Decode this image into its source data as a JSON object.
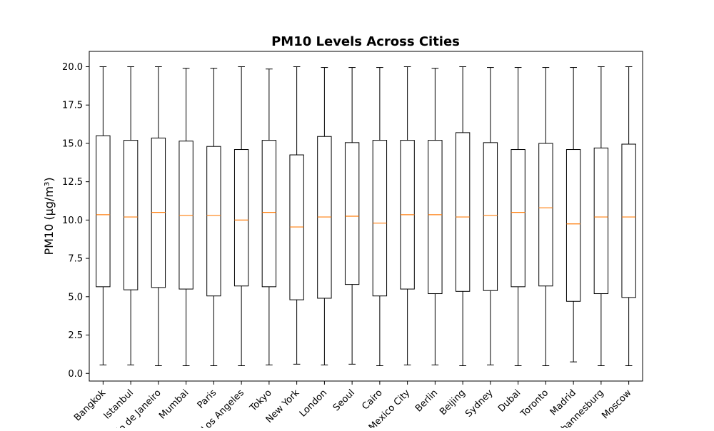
{
  "chart_data": {
    "type": "box",
    "title": "PM10 Levels Across Cities",
    "xlabel": "",
    "ylabel": "PM10 (µg/m³)",
    "ylim": [
      -0.5,
      21.0
    ],
    "yticks": [
      "0.0",
      "2.5",
      "5.0",
      "7.5",
      "10.0",
      "12.5",
      "15.0",
      "17.5",
      "20.0"
    ],
    "grid": false,
    "colors": {
      "box": "#000000",
      "median": "#ff7f0e",
      "background": "#ffffff"
    },
    "categories": [
      "Bangkok",
      "Istanbul",
      "Rio de Janeiro",
      "Mumbai",
      "Paris",
      "Los Angeles",
      "Tokyo",
      "New York",
      "London",
      "Seoul",
      "Cairo",
      "Mexico City",
      "Berlin",
      "Beijing",
      "Sydney",
      "Dubai",
      "Toronto",
      "Madrid",
      "Johannesburg",
      "Moscow"
    ],
    "boxes": [
      {
        "whislo": 0.55,
        "q1": 5.65,
        "med": 10.35,
        "q3": 15.5,
        "whishi": 20.0
      },
      {
        "whislo": 0.55,
        "q1": 5.45,
        "med": 10.2,
        "q3": 15.2,
        "whishi": 20.0
      },
      {
        "whislo": 0.5,
        "q1": 5.6,
        "med": 10.5,
        "q3": 15.35,
        "whishi": 20.0
      },
      {
        "whislo": 0.5,
        "q1": 5.5,
        "med": 10.3,
        "q3": 15.15,
        "whishi": 19.9
      },
      {
        "whislo": 0.5,
        "q1": 5.05,
        "med": 10.3,
        "q3": 14.8,
        "whishi": 19.9
      },
      {
        "whislo": 0.5,
        "q1": 5.7,
        "med": 10.0,
        "q3": 14.6,
        "whishi": 20.0
      },
      {
        "whislo": 0.55,
        "q1": 5.65,
        "med": 10.5,
        "q3": 15.2,
        "whishi": 19.85
      },
      {
        "whislo": 0.6,
        "q1": 4.8,
        "med": 9.55,
        "q3": 14.25,
        "whishi": 20.0
      },
      {
        "whislo": 0.55,
        "q1": 4.9,
        "med": 10.2,
        "q3": 15.45,
        "whishi": 19.95
      },
      {
        "whislo": 0.6,
        "q1": 5.8,
        "med": 10.25,
        "q3": 15.05,
        "whishi": 19.95
      },
      {
        "whislo": 0.5,
        "q1": 5.05,
        "med": 9.8,
        "q3": 15.2,
        "whishi": 19.95
      },
      {
        "whislo": 0.55,
        "q1": 5.5,
        "med": 10.35,
        "q3": 15.2,
        "whishi": 20.0
      },
      {
        "whislo": 0.55,
        "q1": 5.2,
        "med": 10.35,
        "q3": 15.2,
        "whishi": 19.9
      },
      {
        "whislo": 0.5,
        "q1": 5.35,
        "med": 10.2,
        "q3": 15.7,
        "whishi": 20.0
      },
      {
        "whislo": 0.55,
        "q1": 5.4,
        "med": 10.3,
        "q3": 15.05,
        "whishi": 19.95
      },
      {
        "whislo": 0.5,
        "q1": 5.65,
        "med": 10.5,
        "q3": 14.6,
        "whishi": 19.95
      },
      {
        "whislo": 0.5,
        "q1": 5.7,
        "med": 10.8,
        "q3": 15.0,
        "whishi": 19.95
      },
      {
        "whislo": 0.75,
        "q1": 4.7,
        "med": 9.75,
        "q3": 14.6,
        "whishi": 19.95
      },
      {
        "whislo": 0.5,
        "q1": 5.2,
        "med": 10.2,
        "q3": 14.7,
        "whishi": 20.0
      },
      {
        "whislo": 0.5,
        "q1": 4.95,
        "med": 10.2,
        "q3": 14.95,
        "whishi": 20.0
      }
    ]
  }
}
